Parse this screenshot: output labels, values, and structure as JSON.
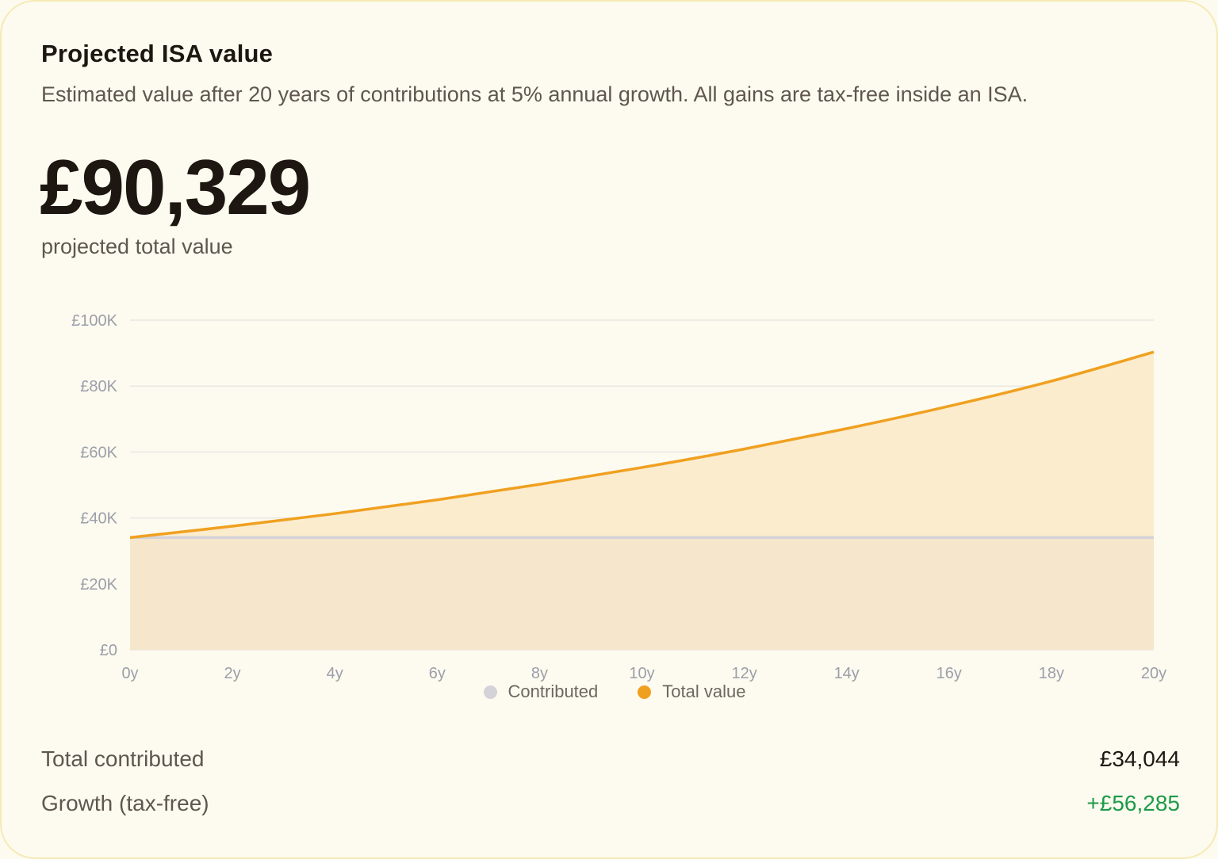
{
  "card": {
    "title": "Projected ISA value",
    "subtitle": "Estimated value after 20 years of contributions at 5% annual growth. All gains are tax-free inside an ISA.",
    "headline_value": "£90,329",
    "headline_caption": "projected total value"
  },
  "legend": {
    "contributed": "Contributed",
    "total": "Total value"
  },
  "summary": {
    "contributed_label": "Total contributed",
    "contributed_value": "£34,044",
    "growth_label": "Growth (tax-free)",
    "growth_value": "+£56,285"
  },
  "colors": {
    "total_line": "#f0a020",
    "total_fill": "#fcecce",
    "contributed_line": "#d3d3d8",
    "contributed_fill": "#f6e7cc",
    "grid": "#e9e7e3",
    "tick_text": "#9b9eaa",
    "positive": "#1d9a49"
  },
  "chart_data": {
    "type": "area",
    "title": "",
    "xlabel": "",
    "ylabel": "",
    "x_ticks": [
      "0y",
      "2y",
      "4y",
      "6y",
      "8y",
      "10y",
      "12y",
      "14y",
      "16y",
      "18y",
      "20y"
    ],
    "y_ticks": [
      "£0",
      "£20K",
      "£40K",
      "£60K",
      "£80K",
      "£100K"
    ],
    "xlim": [
      0,
      20
    ],
    "ylim": [
      0,
      100000
    ],
    "grid": true,
    "legend_position": "bottom-center",
    "x": [
      0,
      2,
      4,
      6,
      8,
      10,
      12,
      14,
      16,
      18,
      20
    ],
    "series": [
      {
        "name": "Contributed",
        "values": [
          34044,
          34044,
          34044,
          34044,
          34044,
          34044,
          34044,
          34044,
          34044,
          34044,
          34044
        ]
      },
      {
        "name": "Total value",
        "values": [
          34044,
          37500,
          41300,
          45500,
          50200,
          55300,
          60900,
          67100,
          73900,
          81500,
          90329
        ]
      }
    ]
  }
}
